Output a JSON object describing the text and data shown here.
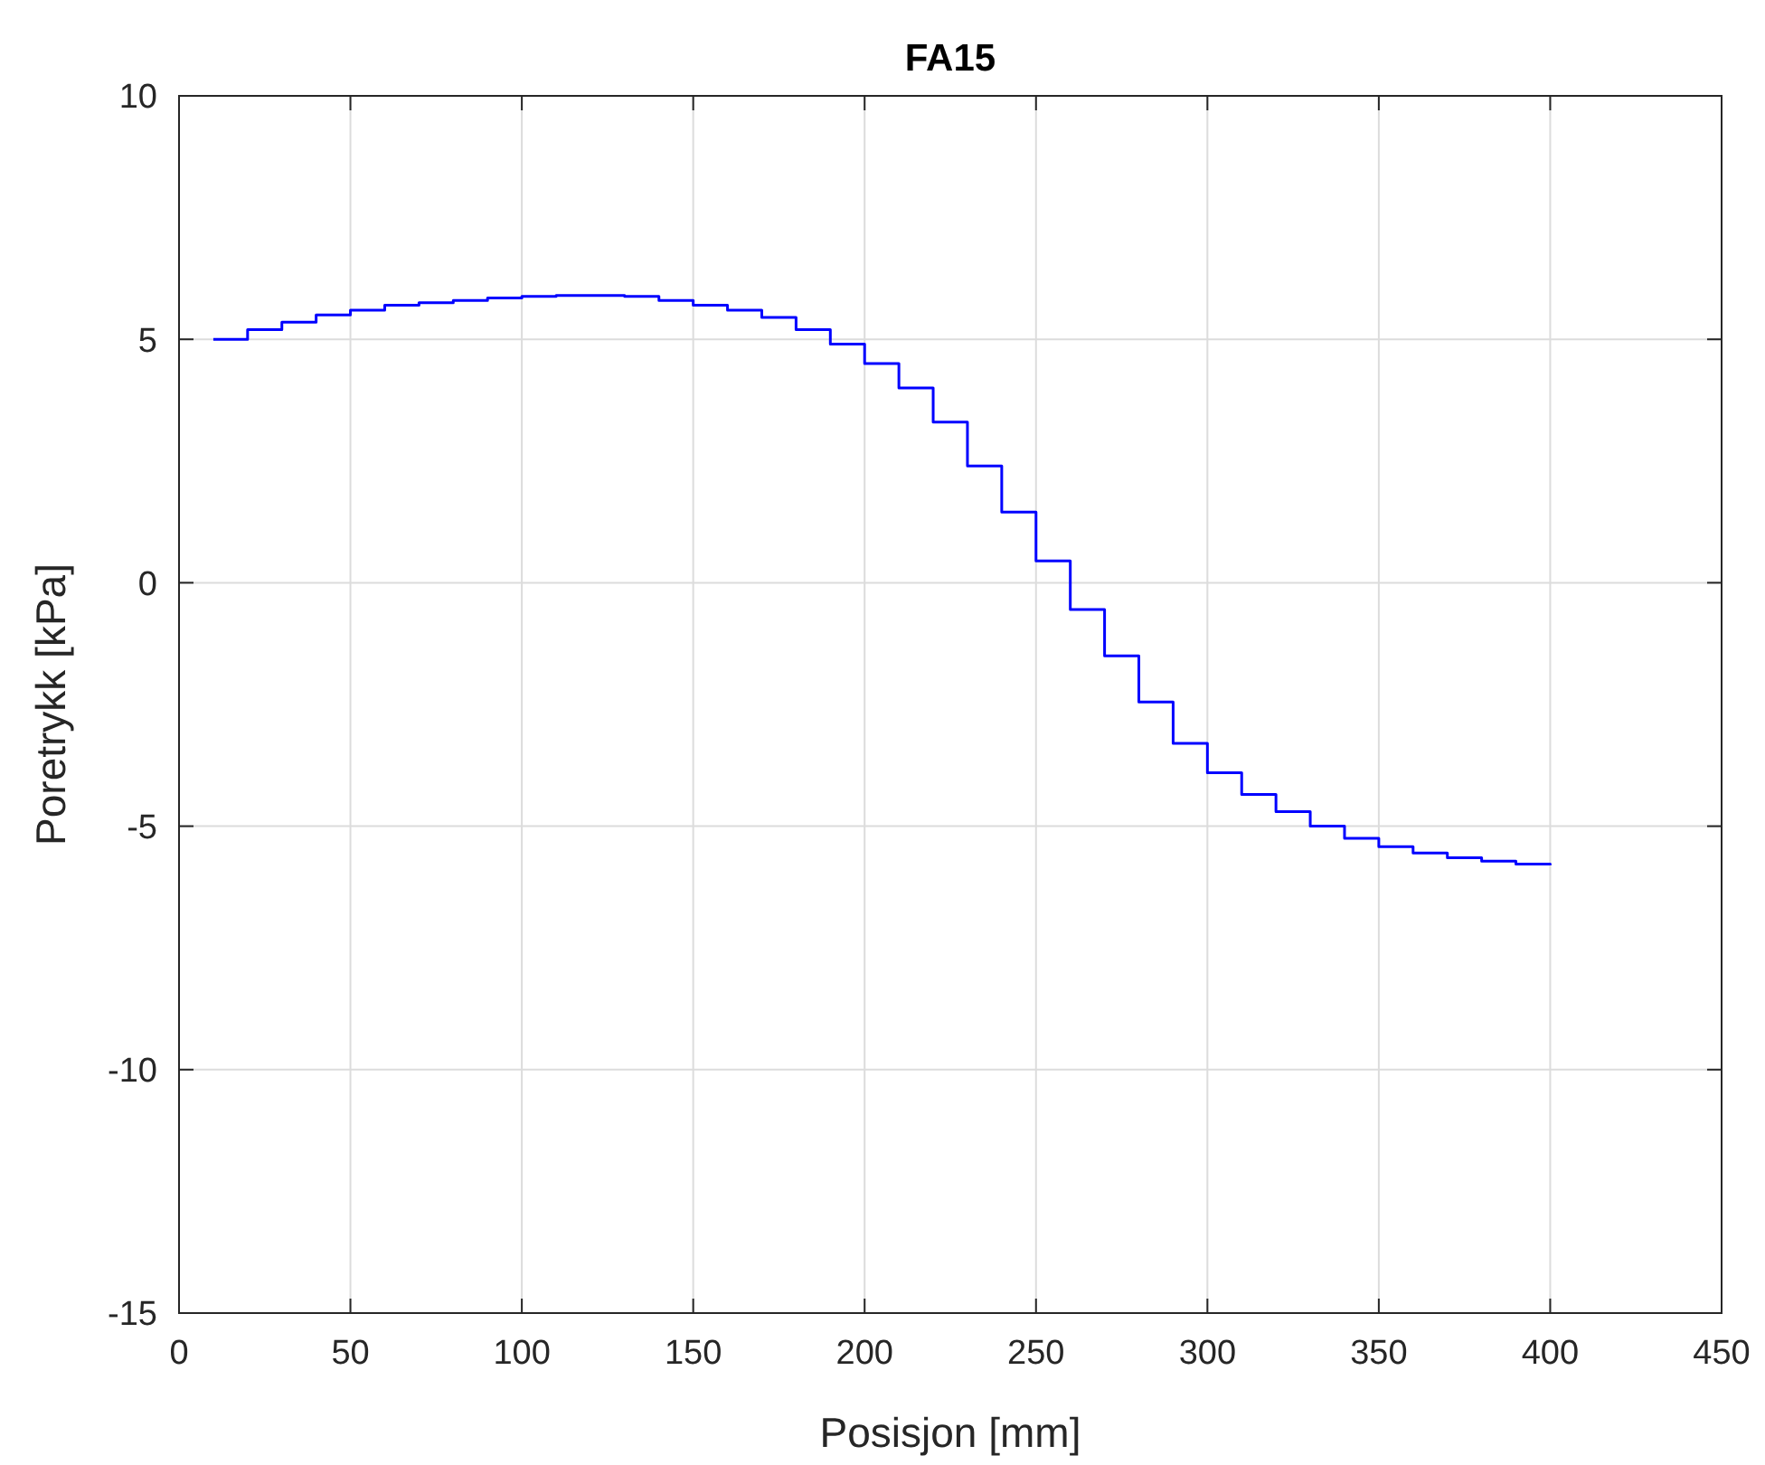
{
  "chart_data": {
    "type": "step",
    "title": "FA15",
    "xlabel": "Posisjon [mm]",
    "ylabel": "Poretrykk [kPa]",
    "x": [
      10,
      20,
      30,
      40,
      50,
      60,
      70,
      80,
      90,
      100,
      110,
      120,
      130,
      140,
      150,
      160,
      170,
      180,
      190,
      200,
      210,
      220,
      230,
      240,
      250,
      260,
      270,
      280,
      290,
      300,
      310,
      320,
      330,
      340,
      350,
      360,
      370,
      380,
      390,
      400
    ],
    "series": [
      {
        "color": "#0000ff",
        "values": [
          5.0,
          5.2,
          5.35,
          5.5,
          5.6,
          5.7,
          5.75,
          5.8,
          5.85,
          5.88,
          5.9,
          5.9,
          5.88,
          5.8,
          5.7,
          5.6,
          5.45,
          5.2,
          4.9,
          4.5,
          4.0,
          3.3,
          2.4,
          1.45,
          0.45,
          -0.55,
          -1.5,
          -2.45,
          -3.3,
          -3.9,
          -4.35,
          -4.7,
          -5.0,
          -5.25,
          -5.42,
          -5.55,
          -5.65,
          -5.72,
          -5.78,
          -5.8
        ]
      }
    ],
    "xlim": [
      0,
      450
    ],
    "xticks": [
      0,
      50,
      100,
      150,
      200,
      250,
      300,
      350,
      400,
      450
    ],
    "ylim": [
      -15,
      10
    ],
    "yticks": [
      -15,
      -10,
      -5,
      0,
      5,
      10
    ],
    "grid": true,
    "line_style": "solid"
  }
}
